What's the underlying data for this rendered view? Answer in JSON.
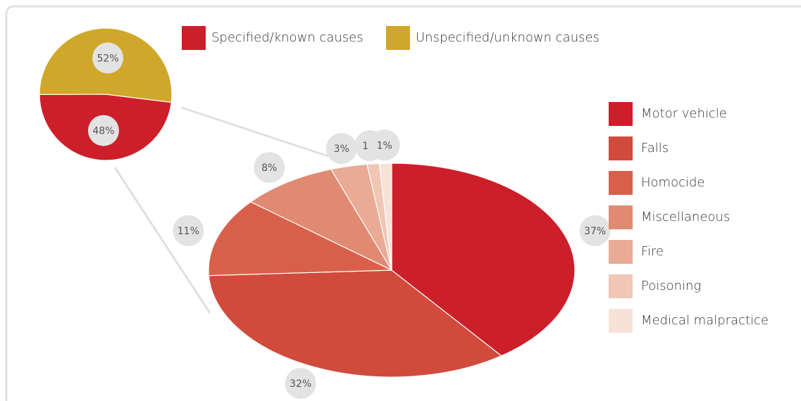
{
  "chart_data": [
    {
      "type": "pie",
      "categories": [
        "Specified/known causes",
        "Unspecified/unknown causes"
      ],
      "values": [
        48,
        52
      ],
      "value_labels": [
        "48%",
        "52%"
      ],
      "colors": [
        "#cc1f2a",
        "#cfa72a"
      ],
      "legend": "top"
    },
    {
      "type": "pie",
      "categories": [
        "Motor vehicle",
        "Falls",
        "Homocide",
        "Miscellaneous",
        "Fire",
        "Poisoning",
        "Medical malpractice"
      ],
      "values": [
        37,
        32,
        11,
        8,
        3,
        1,
        1
      ],
      "value_labels": [
        "37%",
        "32%",
        "11%",
        "8%",
        "3%",
        "1%",
        "1%"
      ],
      "colors": [
        "#cc1f2a",
        "#d14b3c",
        "#d8604a",
        "#e08a72",
        "#e9ab96",
        "#f0c6b5",
        "#f7e2d8"
      ],
      "legend": "right"
    }
  ]
}
